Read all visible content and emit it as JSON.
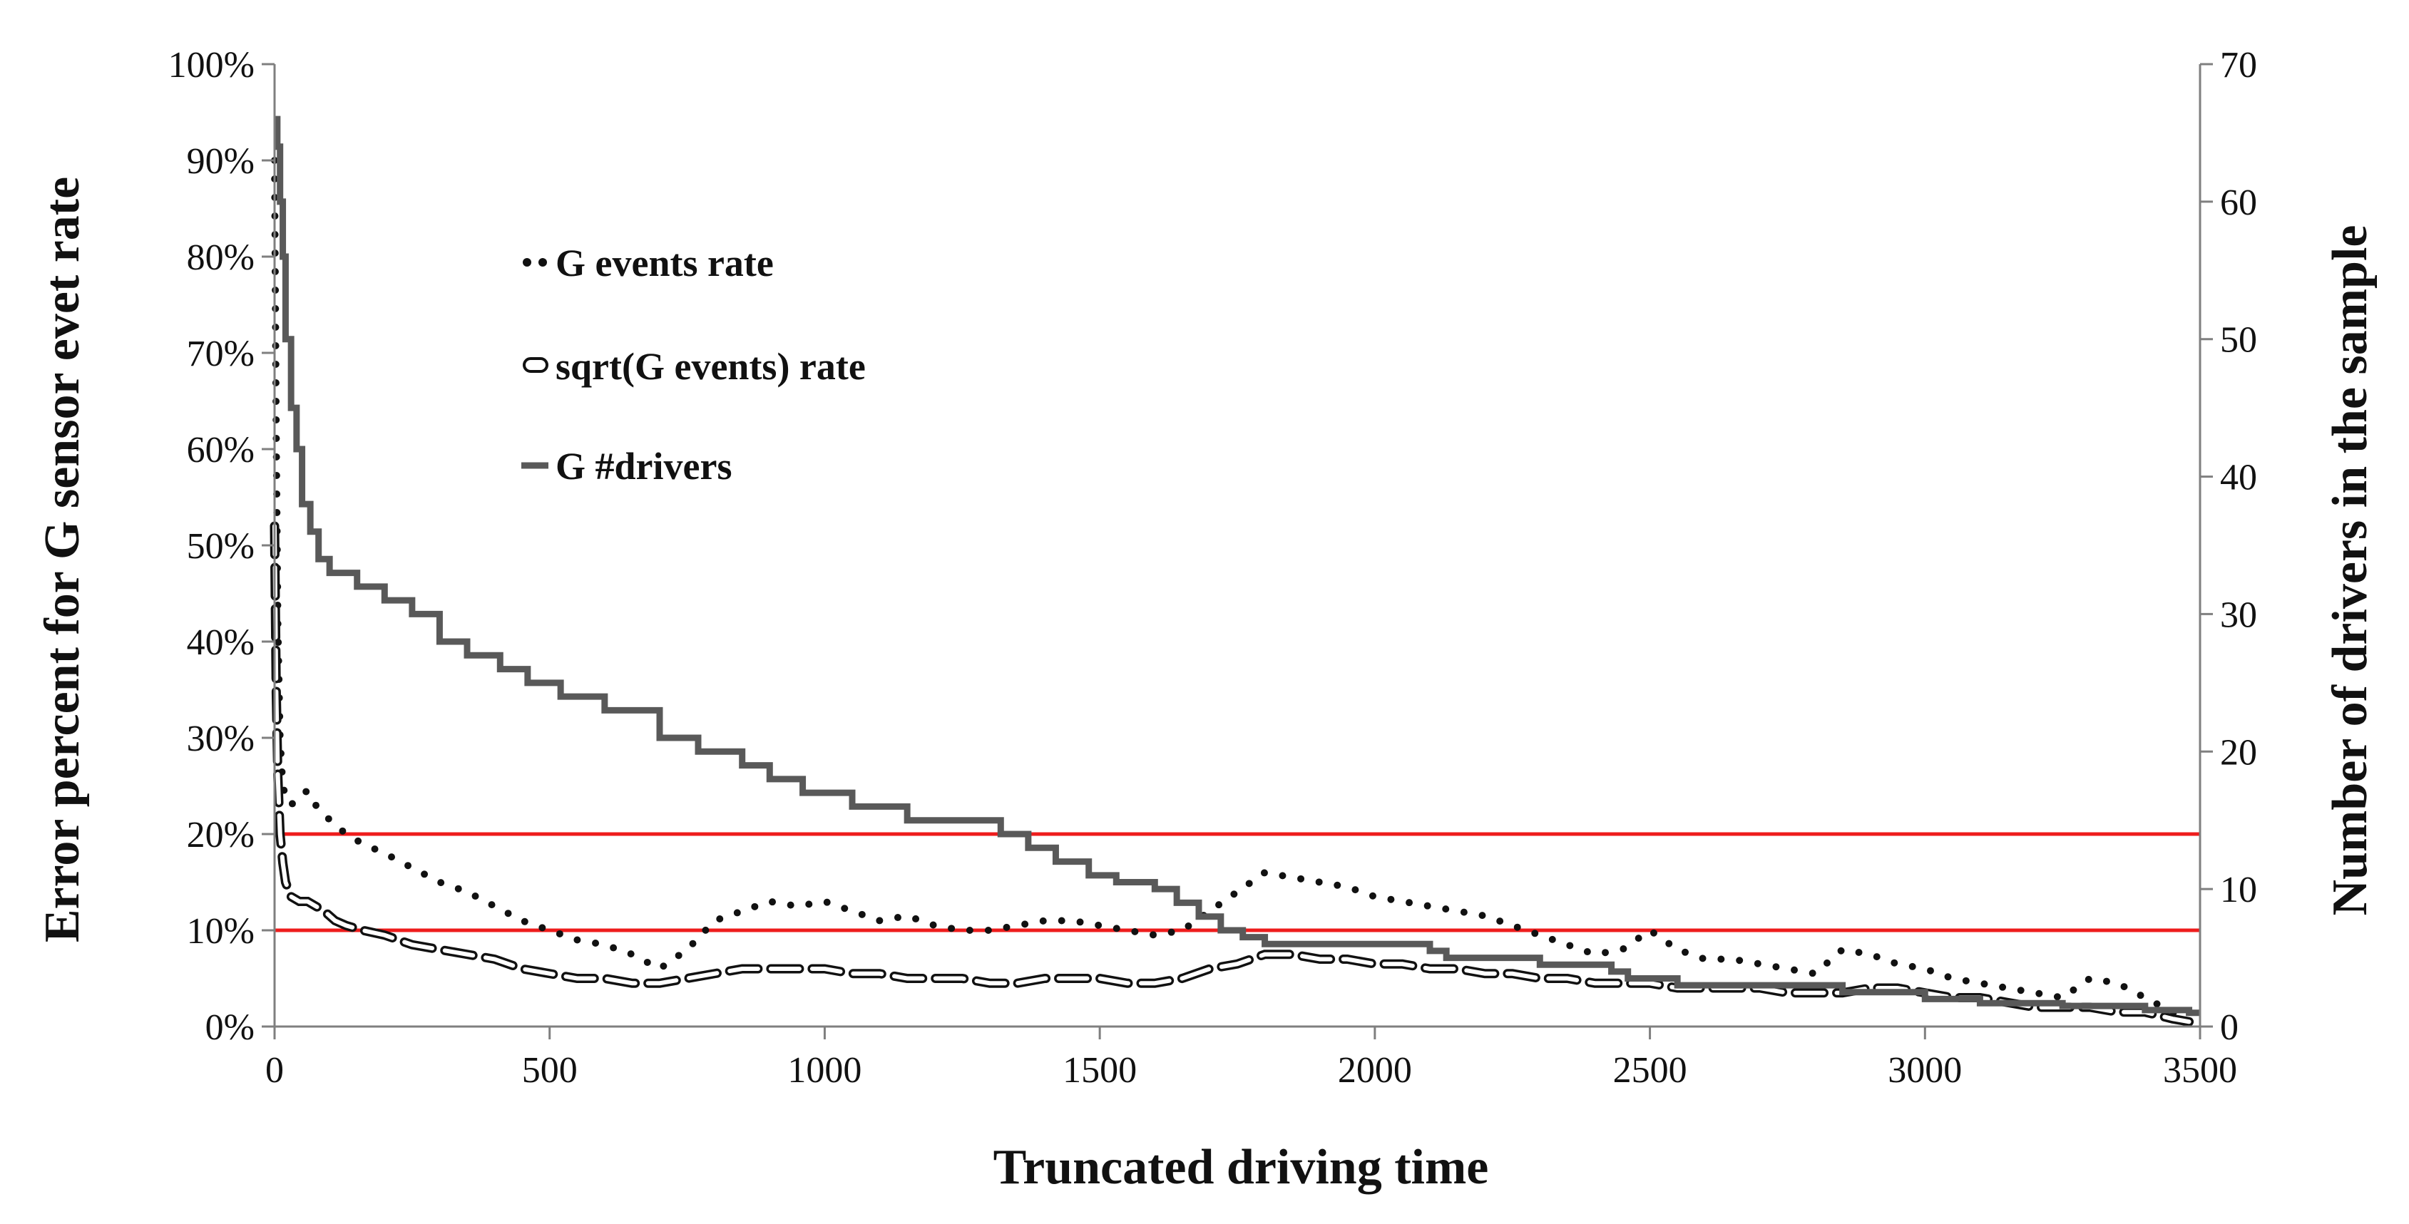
{
  "chart_data": {
    "type": "line",
    "title": "",
    "xlabel": "Truncated driving time",
    "ylabel": "Error percent for G sensor evet rate",
    "y2label": "Number of drivers in the sample",
    "xlim": [
      0,
      3500
    ],
    "ylim": [
      0,
      100
    ],
    "y2lim": [
      0,
      70
    ],
    "xticks": [
      "0",
      "500",
      "1000",
      "1500",
      "2000",
      "2500",
      "3000",
      "3500"
    ],
    "yticks": [
      "0%",
      "10%",
      "20%",
      "30%",
      "40%",
      "50%",
      "60%",
      "70%",
      "80%",
      "90%",
      "100%"
    ],
    "y2ticks": [
      "0",
      "10",
      "20",
      "30",
      "40",
      "50",
      "60",
      "70"
    ],
    "legend_position": "upper-left inside plot",
    "grid": false,
    "reference_lines": [
      {
        "axis": "y",
        "value": 20,
        "color": "#ee1c1c"
      },
      {
        "axis": "y",
        "value": 10,
        "color": "#ee1c1c"
      }
    ],
    "series": [
      {
        "name": "G events rate",
        "axis": "left",
        "style": "dotted",
        "color": "#111111",
        "x": [
          0,
          3,
          6,
          10,
          15,
          20,
          30,
          45,
          60,
          75,
          90,
          110,
          130,
          160,
          200,
          250,
          300,
          350,
          400,
          450,
          500,
          550,
          600,
          650,
          700,
          750,
          800,
          850,
          900,
          950,
          1000,
          1050,
          1100,
          1150,
          1200,
          1250,
          1300,
          1350,
          1400,
          1450,
          1500,
          1550,
          1600,
          1650,
          1700,
          1750,
          1800,
          1850,
          1900,
          1950,
          2000,
          2050,
          2100,
          2150,
          2200,
          2250,
          2300,
          2350,
          2400,
          2450,
          2500,
          2550,
          2600,
          2650,
          2700,
          2750,
          2800,
          2850,
          2900,
          2950,
          3000,
          3050,
          3100,
          3150,
          3200,
          3250,
          3300,
          3350,
          3400,
          3450,
          3480
        ],
        "values": [
          90,
          62,
          42,
          30,
          25,
          24,
          23,
          24,
          24.5,
          23,
          22,
          21,
          20,
          19,
          18,
          16.5,
          15,
          14,
          12.5,
          11,
          10,
          9,
          8.5,
          7.5,
          6,
          8,
          11,
          12,
          13,
          12.5,
          13,
          12,
          11,
          11.5,
          10.5,
          10,
          10,
          10.5,
          11,
          11,
          10.5,
          10,
          9.5,
          10,
          12,
          14,
          16,
          15.5,
          15,
          14.5,
          13.5,
          13,
          12.5,
          12,
          11.5,
          10.5,
          9.5,
          8.5,
          7.5,
          8,
          10,
          8,
          7,
          7,
          6.5,
          6,
          5.5,
          8,
          7.5,
          6.5,
          6,
          5,
          4.5,
          4,
          3.5,
          3,
          5,
          4.5,
          3,
          1.5,
          0.5
        ]
      },
      {
        "name": "sqrt(G events) rate",
        "axis": "left",
        "style": "dashed",
        "color": "#111111",
        "x": [
          0,
          3,
          6,
          10,
          15,
          20,
          30,
          45,
          60,
          75,
          90,
          110,
          130,
          160,
          200,
          250,
          300,
          350,
          400,
          450,
          500,
          550,
          600,
          650,
          700,
          750,
          800,
          850,
          900,
          950,
          1000,
          1050,
          1100,
          1150,
          1200,
          1250,
          1300,
          1350,
          1400,
          1450,
          1500,
          1550,
          1600,
          1650,
          1700,
          1750,
          1800,
          1850,
          1900,
          1950,
          2000,
          2050,
          2100,
          2150,
          2200,
          2250,
          2300,
          2350,
          2400,
          2450,
          2500,
          2550,
          2600,
          2650,
          2700,
          2750,
          2800,
          2850,
          2900,
          2950,
          3000,
          3050,
          3100,
          3150,
          3200,
          3250,
          3300,
          3350,
          3400,
          3450,
          3480
        ],
        "values": [
          52,
          35,
          26,
          20,
          17,
          15,
          13.5,
          13,
          13,
          12.5,
          12,
          11,
          10.5,
          10,
          9.5,
          8.5,
          8,
          7.5,
          7,
          6,
          5.5,
          5,
          5,
          4.5,
          4.5,
          5,
          5.5,
          6,
          6,
          6,
          6,
          5.5,
          5.5,
          5,
          5,
          5,
          4.5,
          4.5,
          5,
          5,
          5,
          4.5,
          4.5,
          5,
          6,
          6.5,
          7.5,
          7.5,
          7,
          7,
          6.5,
          6.5,
          6,
          6,
          5.5,
          5.5,
          5,
          5,
          4.5,
          4.5,
          4.5,
          4,
          4,
          4,
          4,
          3.5,
          3.5,
          3.5,
          4,
          4,
          3.5,
          3,
          3,
          2.5,
          2,
          2,
          2,
          1.5,
          1.5,
          0.8,
          0.5
        ]
      },
      {
        "name": "G #drivers",
        "axis": "right",
        "style": "solid-step",
        "color": "#595959",
        "x": [
          0,
          5,
          10,
          15,
          20,
          30,
          40,
          50,
          65,
          80,
          100,
          150,
          200,
          250,
          300,
          350,
          410,
          460,
          520,
          600,
          700,
          770,
          850,
          900,
          960,
          1050,
          1150,
          1320,
          1370,
          1420,
          1480,
          1530,
          1600,
          1640,
          1680,
          1720,
          1760,
          1800,
          2100,
          2130,
          2300,
          2430,
          2460,
          2550,
          2850,
          3000,
          3100,
          3250,
          3400,
          3480
        ],
        "values": [
          66,
          64,
          60,
          56,
          50,
          45,
          42,
          38,
          36,
          34,
          33,
          32,
          31,
          30,
          28,
          27,
          26,
          25,
          24,
          23,
          21,
          20,
          19,
          18,
          17,
          16,
          15,
          14,
          13,
          12,
          11,
          10.5,
          10,
          9,
          8,
          7,
          6.5,
          6,
          5.5,
          5,
          4.5,
          4,
          3.5,
          3,
          2.5,
          2,
          1.7,
          1.5,
          1.2,
          1
        ]
      }
    ]
  }
}
